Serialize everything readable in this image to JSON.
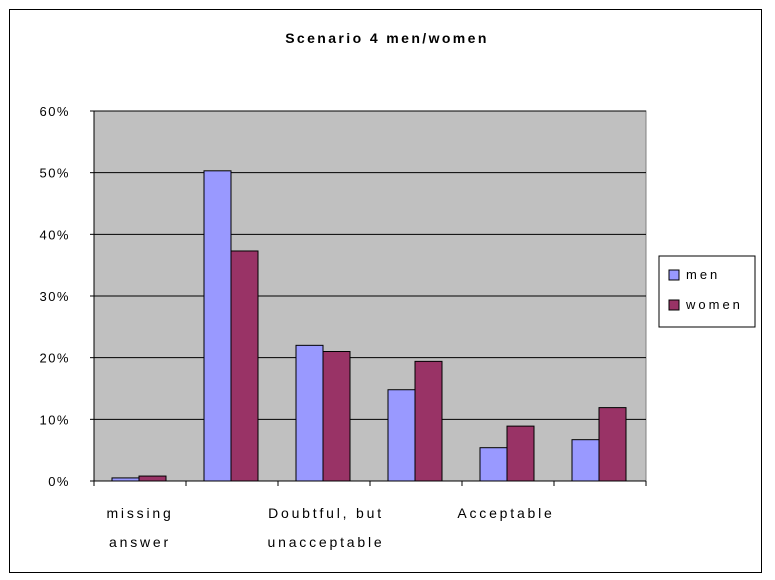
{
  "chart_data": {
    "type": "bar",
    "title": "Scenario 4 men/women",
    "categories": [
      "missing answer",
      "",
      "Doubtful, but unacceptable",
      "",
      "Acceptable",
      ""
    ],
    "category_label_lines": [
      [
        "missing",
        "answer"
      ],
      [],
      [
        "Doubtful, but",
        "unacceptable"
      ],
      [],
      [
        "Acceptable"
      ],
      []
    ],
    "series": [
      {
        "name": "men",
        "color": "#9999ff",
        "values": [
          0.5,
          50.3,
          22.0,
          14.8,
          5.4,
          6.7
        ]
      },
      {
        "name": "women",
        "color": "#993366",
        "values": [
          0.8,
          37.3,
          21.0,
          19.4,
          8.9,
          11.9
        ]
      }
    ],
    "ylim": [
      0,
      60
    ],
    "yticks": [
      0,
      10,
      20,
      30,
      40,
      50,
      60
    ],
    "ytick_labels": [
      "0%",
      "10%",
      "20%",
      "30%",
      "40%",
      "50%",
      "60%"
    ],
    "xlabel": "",
    "ylabel": "",
    "grid": true,
    "plot_background": "#c0c0c0",
    "legend_position": "right"
  }
}
